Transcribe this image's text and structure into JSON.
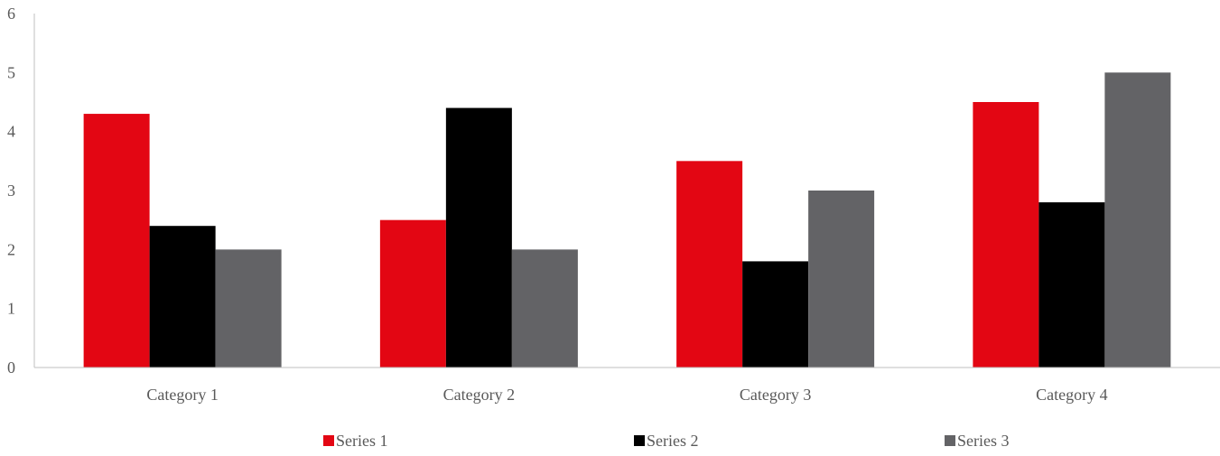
{
  "chart_data": {
    "type": "bar",
    "categories": [
      "Category 1",
      "Category 2",
      "Category 3",
      "Category 4"
    ],
    "series": [
      {
        "name": "Series 1",
        "values": [
          4.3,
          2.5,
          3.5,
          4.5
        ],
        "color": "#E30613"
      },
      {
        "name": "Series 2",
        "values": [
          2.4,
          4.4,
          1.8,
          2.8
        ],
        "color": "#000000"
      },
      {
        "name": "Series 3",
        "values": [
          2.0,
          2.0,
          3.0,
          5.0
        ],
        "color": "#636366"
      }
    ],
    "yticks": [
      0,
      1,
      2,
      3,
      4,
      5,
      6
    ],
    "ylim": [
      0,
      6
    ],
    "title": "",
    "xlabel": "",
    "ylabel": "",
    "grid": false,
    "legend_position": "bottom"
  }
}
